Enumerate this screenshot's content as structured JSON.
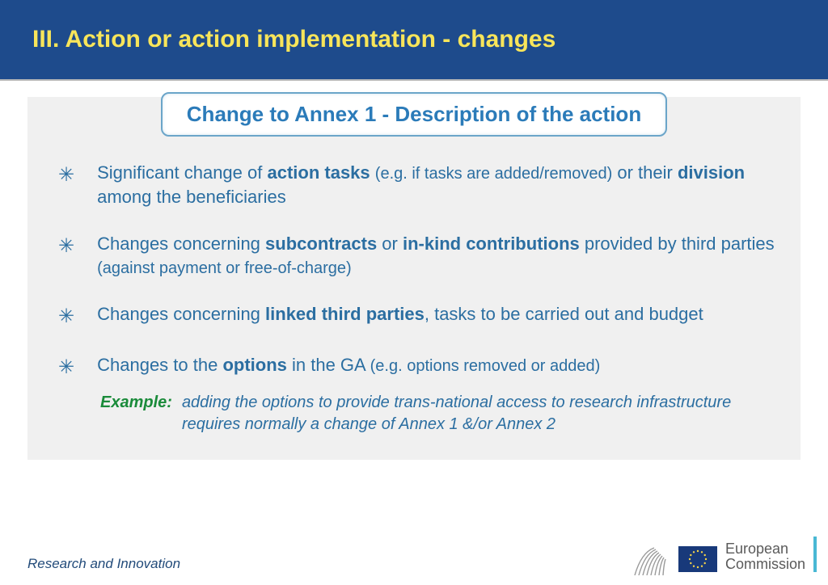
{
  "header": {
    "title": "III. Action or action implementation - changes",
    "bg_color": "#1e4b8c",
    "title_color": "#f8e55a"
  },
  "subtitle": {
    "text": "Change to Annex 1 - Description of the action",
    "color": "#2b7bb9",
    "border_color": "#6ba5c9"
  },
  "content_bg": "#f0f0f0",
  "text_color": "#2b6ea1",
  "bullets": [
    {
      "parts": [
        {
          "t": "Significant change of ",
          "b": false
        },
        {
          "t": "action tasks",
          "b": true
        },
        {
          "t": " ",
          "b": false
        },
        {
          "t": "(e.g. if tasks are added/removed)",
          "b": false,
          "paren": true
        },
        {
          "t": " or their ",
          "b": false
        },
        {
          "t": "division",
          "b": true
        },
        {
          "t": " among the beneficiaries",
          "b": false
        }
      ]
    },
    {
      "parts": [
        {
          "t": "Changes concerning ",
          "b": false
        },
        {
          "t": "subcontracts",
          "b": true
        },
        {
          "t": " or ",
          "b": false
        },
        {
          "t": "in-kind contributions",
          "b": true
        },
        {
          "t": " provided by third parties ",
          "b": false
        },
        {
          "t": "(against payment or free-of-charge)",
          "b": false,
          "paren": true
        }
      ]
    },
    {
      "parts": [
        {
          "t": "Changes concerning ",
          "b": false
        },
        {
          "t": "linked third parties",
          "b": true
        },
        {
          "t": ", tasks to be carried out and budget",
          "b": false
        }
      ]
    },
    {
      "parts": [
        {
          "t": "Changes to the ",
          "b": false
        },
        {
          "t": "options",
          "b": true
        },
        {
          "t": " in the GA ",
          "b": false
        },
        {
          "t": "(e.g. options removed or added)",
          "b": false,
          "paren": true
        }
      ]
    }
  ],
  "example": {
    "label": "Example:",
    "label_color": "#1a8b3a",
    "text": "adding the options to provide trans-national access to research infrastructure requires normally a change of Annex 1 &/or Annex 2"
  },
  "footer": {
    "left": "Research and Innovation",
    "ec_line1": "European",
    "ec_line2": "Commission"
  }
}
